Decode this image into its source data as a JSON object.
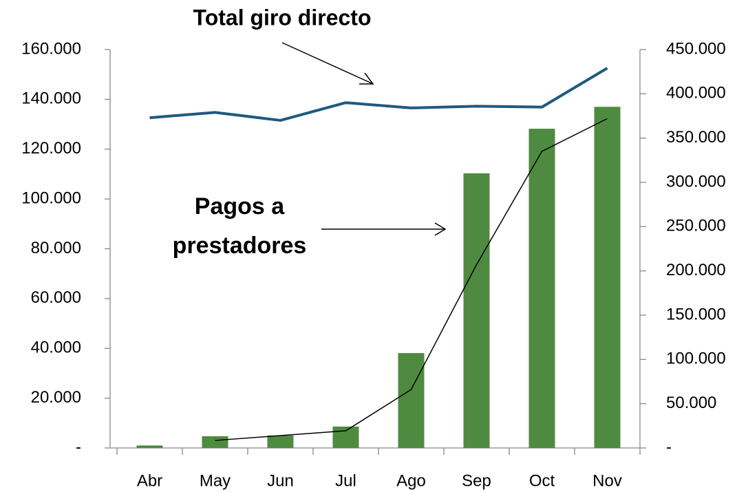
{
  "chart_data": {
    "type": "bar",
    "title": "Total giro directo",
    "annotations": [
      "Pagos a prestadores"
    ],
    "categories": [
      "Abr",
      "May",
      "Jun",
      "Jul",
      "Ago",
      "Sep",
      "Oct",
      "Nov"
    ],
    "series": [
      {
        "type": "bar",
        "color": "#4f8a41",
        "axis": "y",
        "values": [
          1000,
          4700,
          5000,
          8600,
          38100,
          110300,
          128200,
          137000
        ]
      },
      {
        "type": "line",
        "color": "#1f5a7e",
        "axis": "y2",
        "values": [
          373000,
          379000,
          370000,
          390000,
          384000,
          386000,
          385000,
          429000
        ]
      },
      {
        "type": "line",
        "color": "#000000",
        "axis": "y2",
        "values": [
          null,
          8500,
          14000,
          19400,
          66000,
          207000,
          335000,
          372000
        ]
      }
    ],
    "ylim": [
      0,
      160000
    ],
    "yticks": [
      {
        "value": 0,
        "label": "-"
      },
      {
        "value": 20000,
        "label": "20.000"
      },
      {
        "value": 40000,
        "label": "40.000"
      },
      {
        "value": 60000,
        "label": "60.000"
      },
      {
        "value": 80000,
        "label": "80.000"
      },
      {
        "value": 100000,
        "label": "100.000"
      },
      {
        "value": 120000,
        "label": "120.000"
      },
      {
        "value": 140000,
        "label": "140.000"
      },
      {
        "value": 160000,
        "label": "160.000"
      }
    ],
    "y2lim": [
      0,
      450000
    ],
    "y2ticks": [
      {
        "value": 0,
        "label": "-"
      },
      {
        "value": 50000,
        "label": "50.000"
      },
      {
        "value": 100000,
        "label": "100.000"
      },
      {
        "value": 150000,
        "label": "150.000"
      },
      {
        "value": 200000,
        "label": "200.000"
      },
      {
        "value": 250000,
        "label": "250.000"
      },
      {
        "value": 300000,
        "label": "300.000"
      },
      {
        "value": 350000,
        "label": "350.000"
      },
      {
        "value": 400000,
        "label": "400.000"
      },
      {
        "value": 450000,
        "label": "450.000"
      }
    ],
    "grid": false
  }
}
